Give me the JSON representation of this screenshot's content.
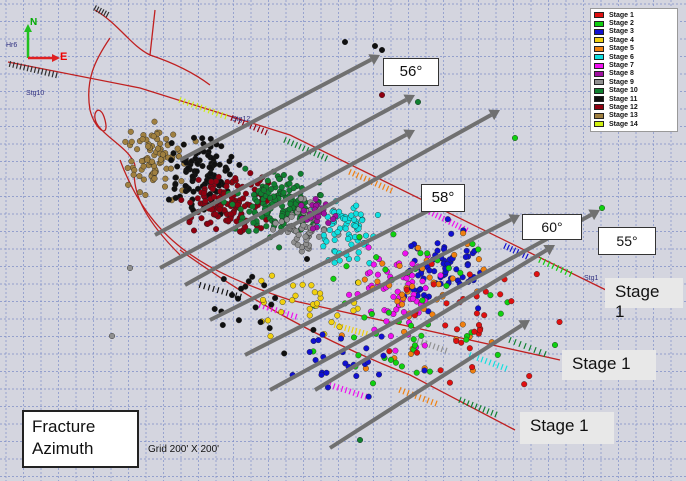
{
  "title": [
    "Fracture",
    "Azimuth"
  ],
  "grid_note": "Grid 200' X 200'",
  "compass": {
    "north": "N",
    "east": "E"
  },
  "legend": [
    {
      "label": "Stage 1",
      "color": "#e01010"
    },
    {
      "label": "Stage 2",
      "color": "#10d010"
    },
    {
      "label": "Stage 3",
      "color": "#1010d0"
    },
    {
      "label": "Stage 4",
      "color": "#f0d010"
    },
    {
      "label": "Stage 5",
      "color": "#f08010"
    },
    {
      "label": "Stage 6",
      "color": "#10e0e0"
    },
    {
      "label": "Stage 7",
      "color": "#f010f0"
    },
    {
      "label": "Stage 8",
      "color": "#a010a0"
    },
    {
      "label": "Stage 9",
      "color": "#909090"
    },
    {
      "label": "Stage 10",
      "color": "#108030"
    },
    {
      "label": "Stage 11",
      "color": "#101010"
    },
    {
      "label": "Stage 12",
      "color": "#900010"
    },
    {
      "label": "Stage 13",
      "color": "#a08040"
    },
    {
      "label": "Stage 14",
      "color": "#d0f010"
    }
  ],
  "azimuth_labels": [
    "56°",
    "58°",
    "60°",
    "55°"
  ],
  "stage_labels": [
    "Stage 1",
    "Stage 1",
    "Stage 1"
  ],
  "well_labels": [
    "Hr6",
    "Stg10",
    "Stg12",
    "Stg1"
  ],
  "colors": {
    "background": "#d4d5df",
    "grid": "#7f8fc8",
    "well_path": "#c02020",
    "arrow": "#707070",
    "stage_band": "#303030"
  }
}
